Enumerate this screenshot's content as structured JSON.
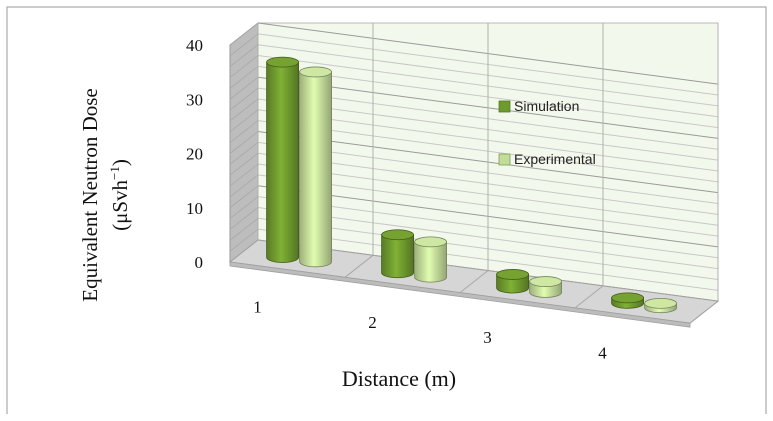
{
  "chart_data": {
    "type": "bar",
    "style": "3d-cylinder",
    "categories": [
      "1",
      "2",
      "3",
      "4"
    ],
    "series": [
      {
        "name": "Simulation",
        "values": [
          36,
          7,
          2.5,
          1
        ],
        "color": "#6f9a2e"
      },
      {
        "name": "Experimental",
        "values": [
          35,
          6.5,
          2,
          0.8
        ],
        "color": "#c4dc9a"
      }
    ],
    "ylim": [
      0,
      40
    ],
    "yticks": [
      "0",
      "10",
      "20",
      "30",
      "40"
    ],
    "xlabel": "Distance (m)",
    "ylabel": {
      "line1": "Equivalent Neutron Dose",
      "line2_prefix": "(μSvh",
      "line2_sup": "−1",
      "line2_suffix": ")"
    },
    "legend_position": "right",
    "grid": true
  }
}
